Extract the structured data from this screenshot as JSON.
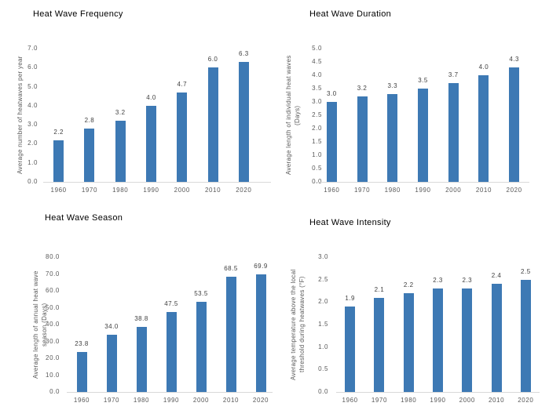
{
  "colors": {
    "background": "#FFFFFF",
    "bar_fill": "#3D79B4",
    "axis_line": "#D9D9D9",
    "tick_text": "#595959",
    "value_label_text": "#404040",
    "title_text": "#000000"
  },
  "chart_data": [
    {
      "type": "bar",
      "title": "Heat Wave Frequency",
      "ylabel": "Average number of heatwaves per year",
      "xlabel": "",
      "categories": [
        "1960",
        "1970",
        "1980",
        "1990",
        "2000",
        "2010",
        "2020"
      ],
      "values": [
        2.2,
        2.8,
        3.2,
        4.0,
        4.7,
        6.0,
        6.3
      ],
      "value_labels": [
        "2.2",
        "2.8",
        "3.2",
        "4.0",
        "4.7",
        "6.0",
        "6.3"
      ],
      "ylim": [
        0.0,
        7.0
      ],
      "ytick_step": 1.0,
      "grid": false,
      "legend": "none"
    },
    {
      "type": "bar",
      "title": "Heat Wave Duration",
      "ylabel": "Average length of individual heat waves\n(Days)",
      "xlabel": "",
      "categories": [
        "1960",
        "1970",
        "1980",
        "1990",
        "2000",
        "2010",
        "2020"
      ],
      "values": [
        3.0,
        3.2,
        3.3,
        3.5,
        3.7,
        4.0,
        4.3
      ],
      "value_labels": [
        "3.0",
        "3.2",
        "3.3",
        "3.5",
        "3.7",
        "4.0",
        "4.3"
      ],
      "ylim": [
        0.0,
        5.0
      ],
      "ytick_step": 0.5,
      "grid": false,
      "legend": "none"
    },
    {
      "type": "bar",
      "title": "Heat Wave Season",
      "ylabel": "Average length of annual heat wave\nseason (Days)",
      "xlabel": "",
      "categories": [
        "1960",
        "1970",
        "1980",
        "1990",
        "2000",
        "2010",
        "2020"
      ],
      "values": [
        23.8,
        34.0,
        38.8,
        47.5,
        53.5,
        68.5,
        69.9
      ],
      "value_labels": [
        "23.8",
        "34.0",
        "38.8",
        "47.5",
        "53.5",
        "68.5",
        "69.9"
      ],
      "ylim": [
        0.0,
        80.0
      ],
      "ytick_step": 10.0,
      "grid": false,
      "legend": "none"
    },
    {
      "type": "bar",
      "title": "Heat Wave Intensity",
      "ylabel": "Average temperature above the local\nthreshold during heatwaves (°F)",
      "xlabel": "",
      "categories": [
        "1960",
        "1970",
        "1980",
        "1990",
        "2000",
        "2010",
        "2020"
      ],
      "values": [
        1.9,
        2.1,
        2.2,
        2.3,
        2.3,
        2.4,
        2.5
      ],
      "value_labels": [
        "1.9",
        "2.1",
        "2.2",
        "2.3",
        "2.3",
        "2.4",
        "2.5"
      ],
      "ylim": [
        0.0,
        3.0
      ],
      "ytick_step": 0.5,
      "grid": false,
      "legend": "none"
    }
  ]
}
